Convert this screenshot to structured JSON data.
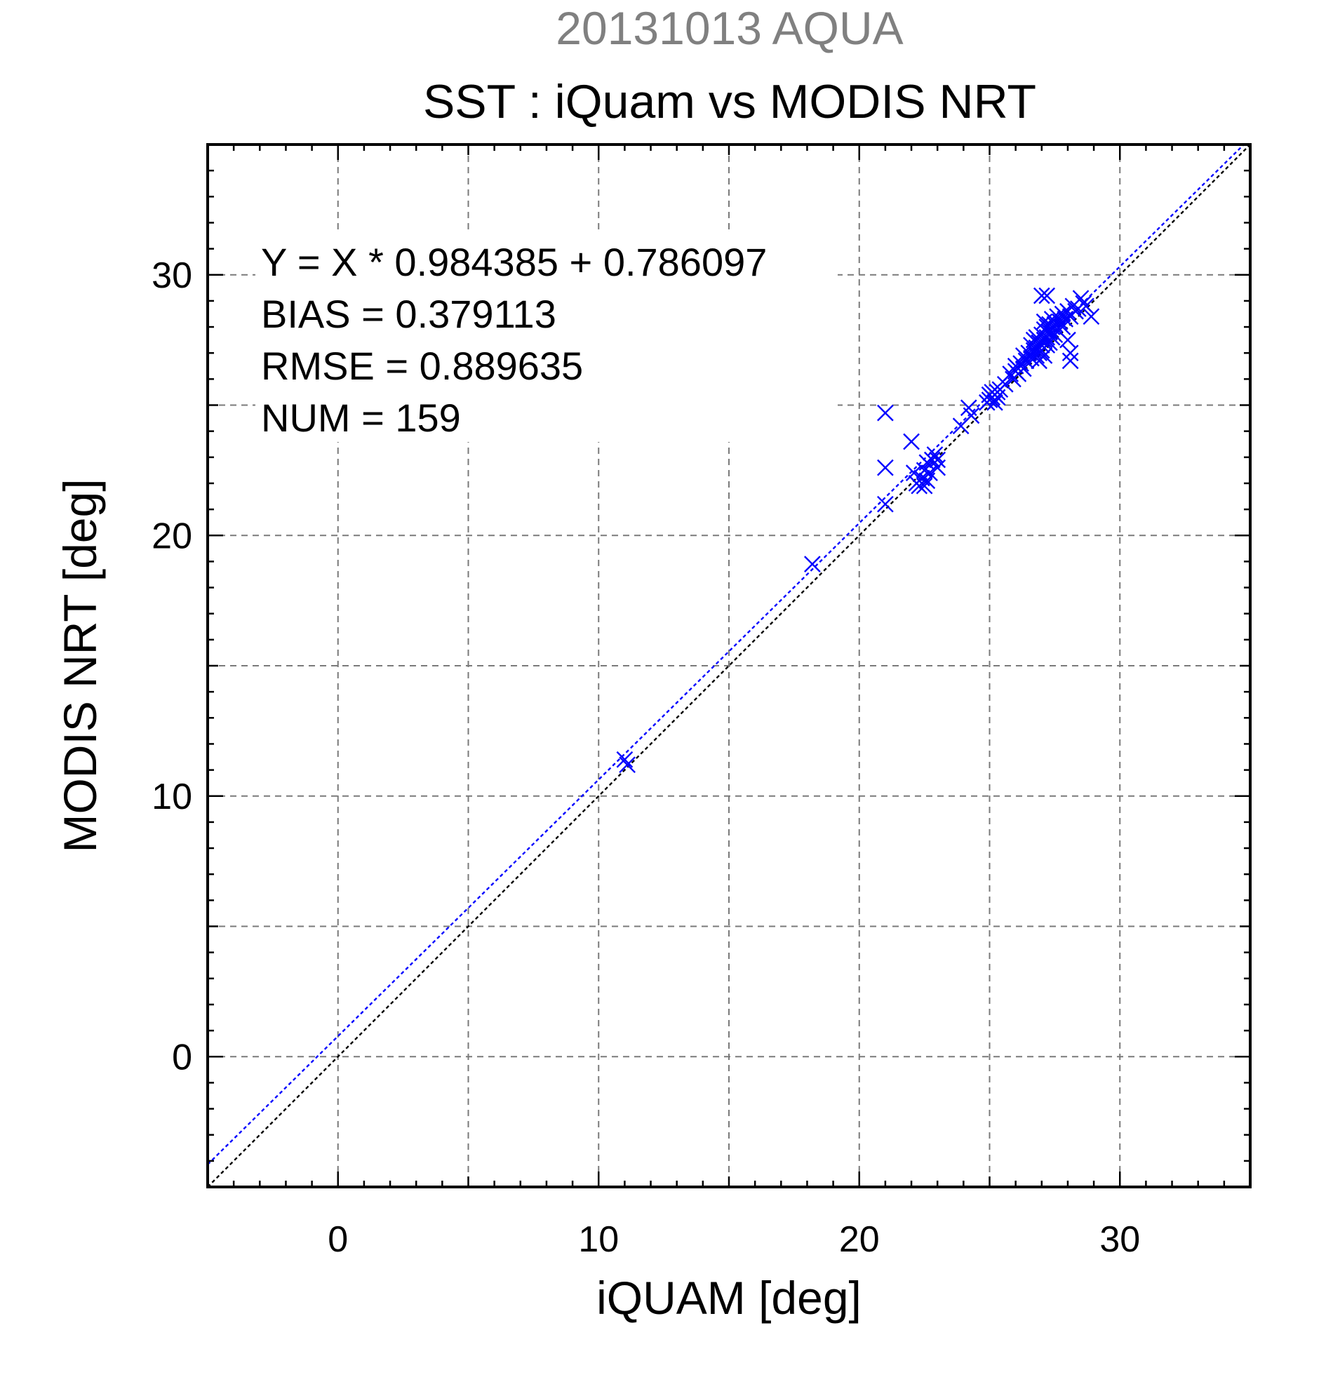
{
  "chart_data": {
    "type": "scatter",
    "supertitle": "20131013 AQUA",
    "title": "SST : iQuam vs MODIS NRT",
    "xlabel": "iQUAM [deg]",
    "ylabel": "MODIS NRT [deg]",
    "xlim": [
      -5,
      35
    ],
    "ylim": [
      -5,
      35
    ],
    "major_ticks": [
      0,
      10,
      20,
      30
    ],
    "tick_labels": [
      "0",
      "10",
      "20",
      "30"
    ],
    "grid": true,
    "colors": {
      "points": "#0000ff",
      "fit_line": "#0000ff",
      "identity_line": "#000000"
    },
    "stats": {
      "equation": "Y = X * 0.984385 + 0.786097",
      "bias": "BIAS = 0.379113",
      "rmse": "RMSE = 0.889635",
      "num": "NUM = 159"
    },
    "fit": {
      "slope": 0.984385,
      "intercept": 0.786097
    },
    "points": [
      [
        11.0,
        11.4
      ],
      [
        11.1,
        11.2
      ],
      [
        18.2,
        18.9
      ],
      [
        21.0,
        24.7
      ],
      [
        21.0,
        22.6
      ],
      [
        21.0,
        21.2
      ],
      [
        22.0,
        23.6
      ],
      [
        22.1,
        22.4
      ],
      [
        22.2,
        22.0
      ],
      [
        22.3,
        21.9
      ],
      [
        22.4,
        22.2
      ],
      [
        22.5,
        22.5
      ],
      [
        22.5,
        21.9
      ],
      [
        22.6,
        22.8
      ],
      [
        22.6,
        22.1
      ],
      [
        22.7,
        22.4
      ],
      [
        22.8,
        22.9
      ],
      [
        22.9,
        23.1
      ],
      [
        23.0,
        22.9
      ],
      [
        23.0,
        22.6
      ],
      [
        23.9,
        24.2
      ],
      [
        24.2,
        24.9
      ],
      [
        24.3,
        24.6
      ],
      [
        24.9,
        25.1
      ],
      [
        25.0,
        25.4
      ],
      [
        25.0,
        25.2
      ],
      [
        25.1,
        25.5
      ],
      [
        25.1,
        25.3
      ],
      [
        25.2,
        25.4
      ],
      [
        25.2,
        25.1
      ],
      [
        25.3,
        25.3
      ],
      [
        25.3,
        25.5
      ],
      [
        25.4,
        25.6
      ],
      [
        25.6,
        25.8
      ],
      [
        25.8,
        26.2
      ],
      [
        25.9,
        26.0
      ],
      [
        26.0,
        26.3
      ],
      [
        26.0,
        26.5
      ],
      [
        26.1,
        26.2
      ],
      [
        26.2,
        26.6
      ],
      [
        26.3,
        26.9
      ],
      [
        26.3,
        26.4
      ],
      [
        26.4,
        26.7
      ],
      [
        26.5,
        27.0
      ],
      [
        26.6,
        26.8
      ],
      [
        26.6,
        27.3
      ],
      [
        26.7,
        27.1
      ],
      [
        26.7,
        27.5
      ],
      [
        26.8,
        26.9
      ],
      [
        26.8,
        27.2
      ],
      [
        26.8,
        27.6
      ],
      [
        26.9,
        27.0
      ],
      [
        26.9,
        27.4
      ],
      [
        26.9,
        26.7
      ],
      [
        27.0,
        27.1
      ],
      [
        27.0,
        27.3
      ],
      [
        27.0,
        27.7
      ],
      [
        27.0,
        29.2
      ],
      [
        27.1,
        26.9
      ],
      [
        27.1,
        27.5
      ],
      [
        27.1,
        27.9
      ],
      [
        27.1,
        28.2
      ],
      [
        27.2,
        27.3
      ],
      [
        27.2,
        27.6
      ],
      [
        27.2,
        28.0
      ],
      [
        27.2,
        29.2
      ],
      [
        27.3,
        27.4
      ],
      [
        27.3,
        27.8
      ],
      [
        27.3,
        28.1
      ],
      [
        27.4,
        27.6
      ],
      [
        27.4,
        28.0
      ],
      [
        27.4,
        28.3
      ],
      [
        27.5,
        27.7
      ],
      [
        27.5,
        28.1
      ],
      [
        27.6,
        27.9
      ],
      [
        27.6,
        28.4
      ],
      [
        27.7,
        28.2
      ],
      [
        27.8,
        28.0
      ],
      [
        27.8,
        28.5
      ],
      [
        27.9,
        28.3
      ],
      [
        28.0,
        27.5
      ],
      [
        28.0,
        28.6
      ],
      [
        28.1,
        26.7
      ],
      [
        28.1,
        27.0
      ],
      [
        28.1,
        28.4
      ],
      [
        28.2,
        28.8
      ],
      [
        28.3,
        28.6
      ],
      [
        28.4,
        28.7
      ],
      [
        28.5,
        29.1
      ],
      [
        28.6,
        28.9
      ],
      [
        28.7,
        28.8
      ],
      [
        28.9,
        28.4
      ]
    ]
  }
}
